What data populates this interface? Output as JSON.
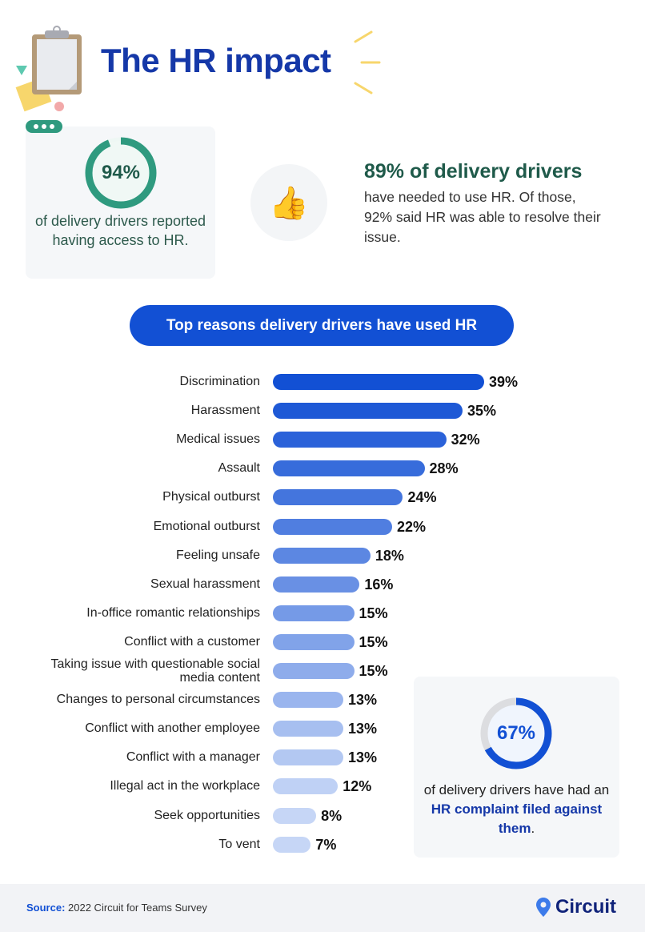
{
  "header": {
    "title": "The HR impact"
  },
  "stat_access": {
    "percent": 94,
    "percent_label": "94%",
    "text": "of delivery drivers reported having access to HR.",
    "color": "#2f9a7f"
  },
  "stat_used": {
    "icon": "thumbs-up-icon",
    "headline": "89% of delivery drivers",
    "text": "have needed to use HR. Of those, 92% said HR was able to resolve their issue."
  },
  "chart_data": {
    "type": "bar",
    "orientation": "horizontal",
    "title": "Top reasons delivery drivers have used HR",
    "categories": [
      "Discrimination",
      "Harassment",
      "Medical issues",
      "Assault",
      "Physical outburst",
      "Emotional outburst",
      "Feeling unsafe",
      "Sexual harassment",
      "In-office romantic relationships",
      "Conflict with a customer",
      "Taking issue with questionable social media content",
      "Changes to personal circumstances",
      "Conflict with another employee",
      "Conflict with a manager",
      "Illegal act in the workplace",
      "Seek opportunities",
      "To vent"
    ],
    "values": [
      39,
      35,
      32,
      28,
      24,
      22,
      18,
      16,
      15,
      15,
      15,
      13,
      13,
      13,
      12,
      8,
      7
    ],
    "value_labels": [
      "39%",
      "35%",
      "32%",
      "28%",
      "24%",
      "22%",
      "18%",
      "16%",
      "15%",
      "15%",
      "15%",
      "13%",
      "13%",
      "13%",
      "12%",
      "8%",
      "7%"
    ],
    "unit": "%",
    "colors": {
      "high": "#1250d4",
      "low": "#c6d6f6"
    }
  },
  "stat_complaint": {
    "percent": 67,
    "percent_label": "67%",
    "text_before": "of delivery drivers have had an ",
    "highlight": "HR complaint filed against them",
    "text_after": ".",
    "color": "#1250d4"
  },
  "footer": {
    "source_label": "Source:",
    "source_text": " 2022 Circuit for Teams Survey",
    "logo": "Circuit"
  }
}
